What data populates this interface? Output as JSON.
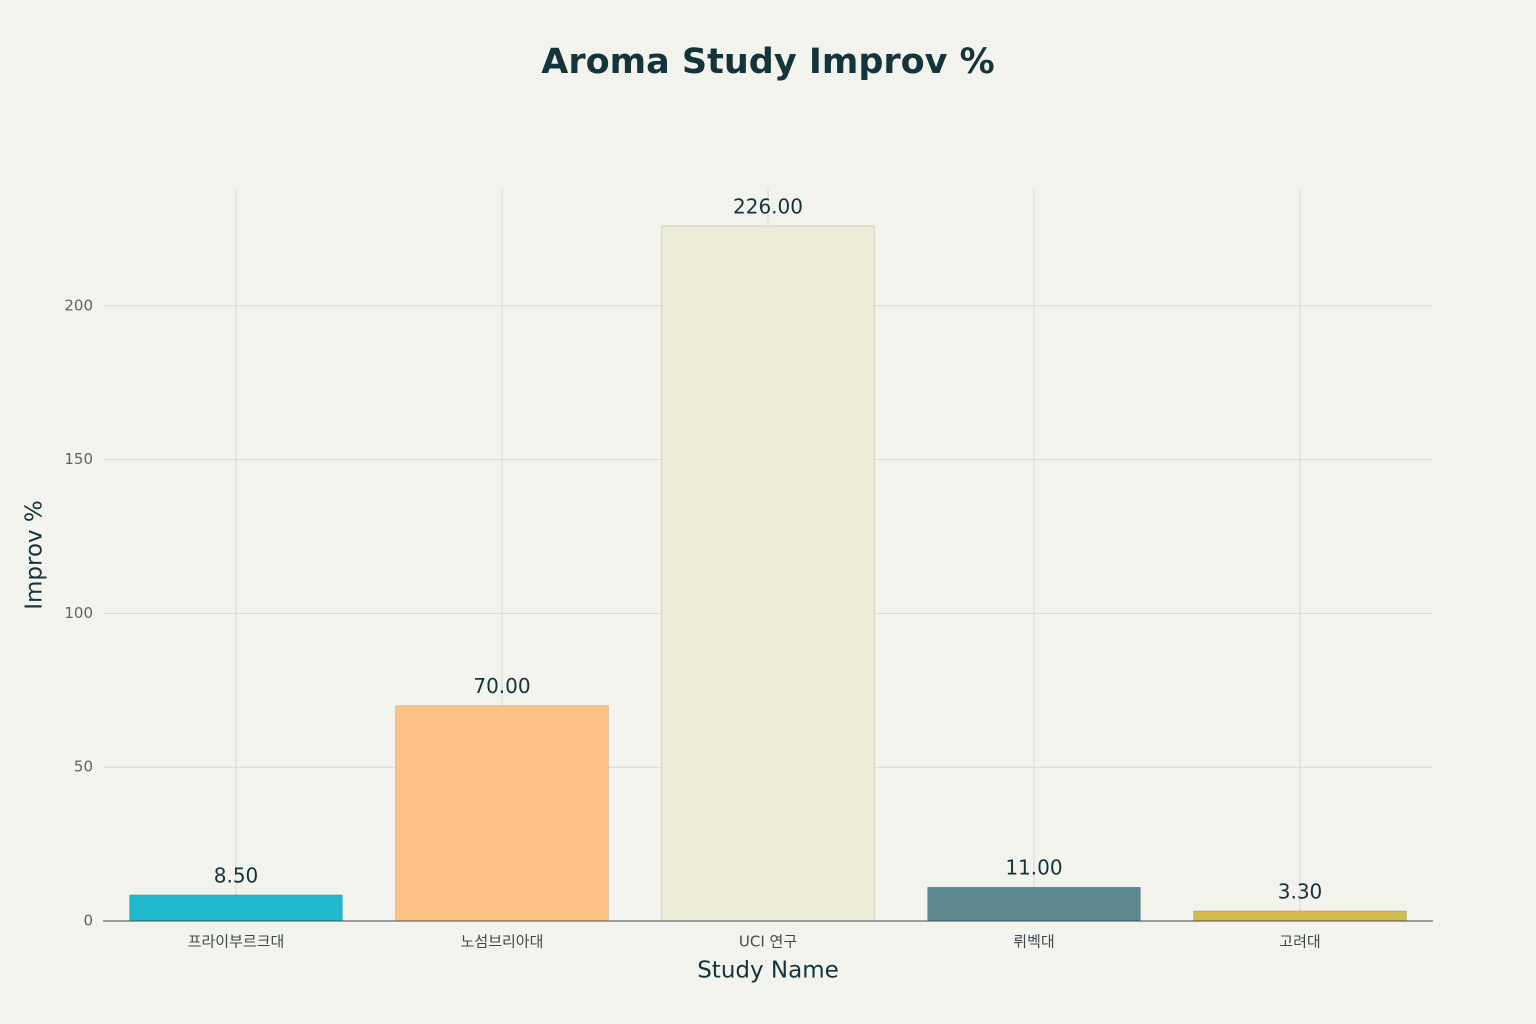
{
  "chart_data": {
    "type": "bar",
    "title": "Aroma Study Improv %",
    "x_label": "Study Name",
    "y_label": "Improv %",
    "categories": [
      "프라이부르크대",
      "노섬브리아대",
      "UCI 연구",
      "뤼벡대",
      "고려대"
    ],
    "values": [
      8.5,
      70,
      226,
      11,
      3.3
    ],
    "value_labels": [
      "8.50",
      "70.00",
      "226.00",
      "11.00",
      "3.30"
    ],
    "colors": [
      "#1fb8cd",
      "#ffc185",
      "#ecebd5",
      "#5d878f",
      "#d2ba4c"
    ],
    "ylim": [
      0,
      238
    ],
    "yticks": [
      0,
      50,
      100,
      150,
      200
    ],
    "grid": true
  }
}
